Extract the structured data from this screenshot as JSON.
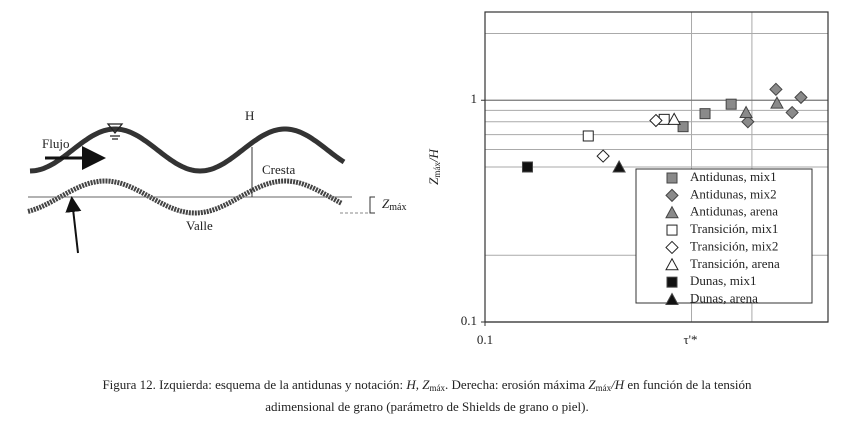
{
  "diagram": {
    "flow_label": "Flujo",
    "height_label": "H",
    "crest_label": "Cresta",
    "trough_label": "Valle",
    "zmax_label": "Z",
    "zmax_sub": "máx"
  },
  "chart_data": {
    "type": "scatter",
    "xlabel": "τ'*",
    "ylabel": [
      {
        "text": "Z",
        "style": "italic"
      },
      {
        "text": "máx",
        "style": "sub"
      },
      {
        "text": "/H",
        "style": "italic"
      }
    ],
    "xscale": "log",
    "yscale": "log",
    "xlim": [
      0.1,
      1
    ],
    "ylim": [
      0.1,
      2.5
    ],
    "xticks": [
      0.1
    ],
    "yticks": [
      0.1,
      1
    ],
    "x_minor_grid": [
      0.4,
      0.6
    ],
    "y_minor_grid": [
      0.2,
      0.5,
      0.6,
      0.7,
      0.8,
      0.9,
      2
    ],
    "grid": true,
    "legend": "lower right",
    "series": [
      {
        "name": "Antidunas, mix1",
        "marker": "square",
        "color": "#8a8a8a",
        "x": [
          0.378,
          0.438,
          0.522
        ],
        "values": [
          0.76,
          0.87,
          0.96
        ]
      },
      {
        "name": "Antidunas, mix2",
        "marker": "diamond",
        "color": "#8a8a8a",
        "x": [
          0.584,
          0.705,
          0.786,
          0.834
        ],
        "values": [
          0.8,
          1.12,
          0.88,
          1.03
        ]
      },
      {
        "name": "Antidunas, arena",
        "marker": "triangle",
        "color": "#8a8a8a",
        "x": [
          0.577,
          0.71
        ],
        "values": [
          0.88,
          0.97
        ]
      },
      {
        "name": "Transición, mix1",
        "marker": "square",
        "color": "#ffffff",
        "x": [
          0.2,
          0.333
        ],
        "values": [
          0.69,
          0.82
        ]
      },
      {
        "name": "Transición, mix2",
        "marker": "diamond",
        "color": "#ffffff",
        "x": [
          0.221,
          0.315
        ],
        "values": [
          0.56,
          0.81
        ]
      },
      {
        "name": "Transición, arena",
        "marker": "triangle",
        "color": "#ffffff",
        "x": [
          0.356
        ],
        "values": [
          0.82
        ]
      },
      {
        "name": "Dunas, mix1",
        "marker": "square",
        "color": "#111111",
        "x": [
          0.133
        ],
        "values": [
          0.5
        ]
      },
      {
        "name": "Dunas, arena",
        "marker": "triangle",
        "color": "#111111",
        "x": [
          0.246
        ],
        "values": [
          0.5
        ]
      }
    ]
  },
  "caption": [
    [
      {
        "text": "Figura 12. Izquierda: esquema de la antidunas y notación: ",
        "style": "normal"
      },
      {
        "text": "H, Z",
        "style": "italic"
      },
      {
        "text": "máx",
        "style": "sub"
      },
      {
        "text": ". Derecha: erosión máxima ",
        "style": "normal"
      },
      {
        "text": "Z",
        "style": "italic"
      },
      {
        "text": "máx",
        "style": "sub"
      },
      {
        "text": "/H",
        "style": "italic"
      },
      {
        "text": " en función de la tensión",
        "style": "normal"
      }
    ],
    [
      {
        "text": "adimensional de grano (parámetro de Shields de grano o piel).",
        "style": "normal"
      }
    ]
  ]
}
